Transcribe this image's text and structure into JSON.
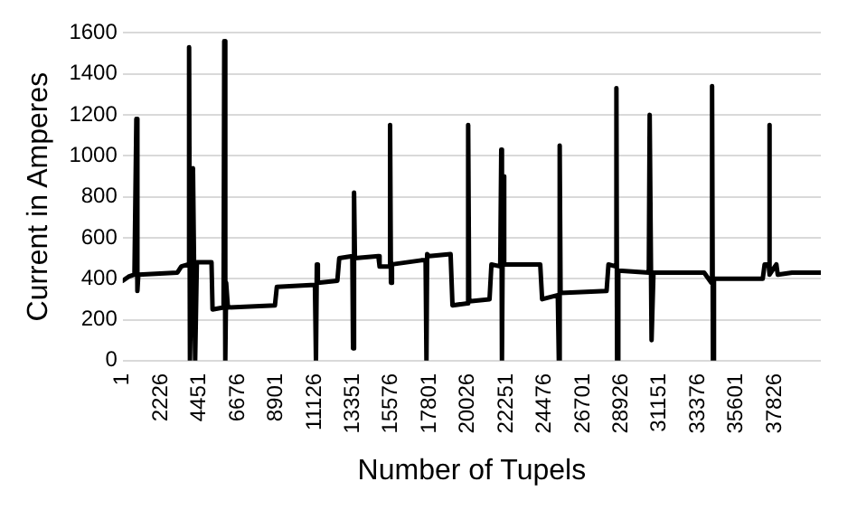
{
  "chart_data": {
    "type": "line",
    "xlabel": "Number of Tupels",
    "ylabel": "Current in Amperes",
    "xlim": [
      1,
      40500
    ],
    "xticks": [
      1,
      2226,
      4451,
      6676,
      8901,
      11126,
      13351,
      15576,
      17801,
      20026,
      22251,
      24476,
      26701,
      28926,
      31151,
      33376,
      35601,
      37826
    ],
    "ylim": [
      0,
      1600
    ],
    "yticks": [
      0,
      200,
      400,
      600,
      800,
      1000,
      1200,
      1400,
      1600
    ],
    "grid": "y",
    "legend": false,
    "marker": "none",
    "line_style": "solid",
    "series": [
      {
        "color": "#000000",
        "x": [
          1,
          340,
          680,
          790,
          850,
          905,
          3170,
          3400,
          3800,
          3850,
          3900,
          4075,
          4200,
          4300,
          5150,
          5210,
          5850,
          5890,
          5950,
          6000,
          6100,
          8830,
          8940,
          11150,
          11210,
          11260,
          11320,
          12450,
          12560,
          13320,
          13360,
          13420,
          13470,
          14830,
          14900,
          15460,
          15510,
          15560,
          15620,
          17320,
          17570,
          17620,
          17660,
          17770,
          19020,
          19130,
          19990,
          20040,
          20100,
          21280,
          21390,
          21900,
          21960,
          22000,
          22070,
          22130,
          24220,
          24330,
          25240,
          25300,
          25350,
          25400,
          28070,
          28180,
          28600,
          28640,
          28680,
          28750,
          30520,
          30570,
          30680,
          30790,
          33730,
          34150,
          34190,
          34240,
          34300,
          37130,
          37240,
          37470,
          37500,
          37550,
          37920,
          38000,
          38830,
          40500
        ],
        "values": [
          390,
          410,
          420,
          1180,
          340,
          420,
          430,
          460,
          470,
          1530,
          0,
          940,
          0,
          480,
          480,
          250,
          260,
          1560,
          0,
          380,
          260,
          270,
          360,
          370,
          0,
          470,
          380,
          390,
          500,
          510,
          60,
          820,
          500,
          510,
          460,
          460,
          1150,
          380,
          470,
          490,
          490,
          0,
          520,
          510,
          520,
          270,
          280,
          1150,
          290,
          300,
          470,
          460,
          1030,
          0,
          900,
          470,
          470,
          300,
          320,
          0,
          1050,
          330,
          340,
          470,
          460,
          1330,
          0,
          440,
          430,
          1200,
          100,
          430,
          430,
          380,
          1340,
          0,
          400,
          400,
          470,
          470,
          1150,
          420,
          470,
          420,
          430,
          430
        ]
      }
    ]
  }
}
